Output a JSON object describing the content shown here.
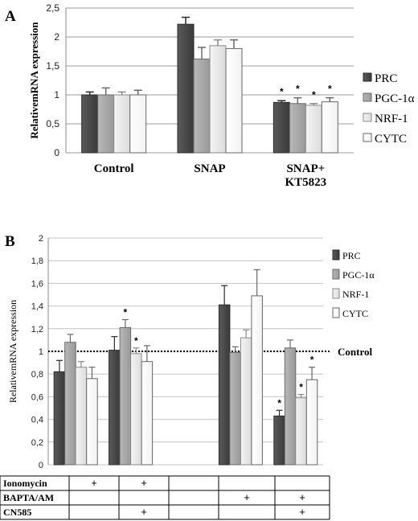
{
  "panel_a_label": "A",
  "panel_b_label": "B",
  "colors": {
    "PRC": "#4a4a4a",
    "PGC": "#a8a8a8",
    "NRF": "#e8e8e8",
    "CYTC": "#ffffff"
  },
  "chart_data": [
    {
      "type": "bar",
      "ylabel": "RelativemRNA expression",
      "ylim": [
        0,
        2.5
      ],
      "yticks": [
        "0",
        "0,5",
        "1",
        "1,5",
        "2",
        "2,5"
      ],
      "categories": [
        "Control",
        "SNAP",
        "SNAP+\nKT5823"
      ],
      "category_lines": [
        [
          "Control"
        ],
        [
          "SNAP"
        ],
        [
          "SNAP+",
          "KT5823"
        ]
      ],
      "legend": [
        "PRC",
        "PGC-1α",
        "NRF-1",
        "CYTC"
      ],
      "series": [
        {
          "name": "PRC",
          "values": [
            1.0,
            2.22,
            0.87
          ],
          "errors": [
            0.05,
            0.12,
            0.03
          ],
          "sig": [
            false,
            false,
            true
          ]
        },
        {
          "name": "PGC-1α",
          "values": [
            1.0,
            1.62,
            0.85
          ],
          "errors": [
            0.12,
            0.2,
            0.1
          ],
          "sig": [
            false,
            false,
            true
          ]
        },
        {
          "name": "NRF-1",
          "values": [
            1.0,
            1.85,
            0.82
          ],
          "errors": [
            0.05,
            0.1,
            0.03
          ],
          "sig": [
            false,
            false,
            true
          ]
        },
        {
          "name": "CYTC",
          "values": [
            1.0,
            1.8,
            0.88
          ],
          "errors": [
            0.08,
            0.15,
            0.07
          ],
          "sig": [
            false,
            false,
            true
          ]
        }
      ],
      "grid": true
    },
    {
      "type": "bar",
      "ylabel": "RelativemRNA expression",
      "ylim": [
        0,
        2
      ],
      "yticks": [
        "0",
        "0,2",
        "0,4",
        "0,6",
        "0,8",
        "1",
        "1,2",
        "1,4",
        "1,6",
        "1,8",
        "2"
      ],
      "reference_line": {
        "value": 1.0,
        "label": "Control"
      },
      "legend": [
        "PRC",
        "PGC-1α",
        "NRF-1",
        "CYTC"
      ],
      "groups": [
        {
          "PRC": 0.82,
          "PGC": 1.08,
          "NRF": 0.86,
          "CYTC": 0.76,
          "err": [
            0.1,
            0.07,
            0.05,
            0.1
          ],
          "sig": [
            false,
            false,
            false,
            false
          ]
        },
        {
          "PRC": 1.01,
          "PGC": 1.21,
          "NRF": 0.98,
          "CYTC": 0.91,
          "err": [
            0.12,
            0.07,
            0.05,
            0.14
          ],
          "sig": [
            false,
            true,
            true,
            false
          ]
        },
        null,
        {
          "PRC": 1.41,
          "PGC": 0.99,
          "NRF": 1.12,
          "CYTC": 1.49,
          "err": [
            0.17,
            0.05,
            0.07,
            0.23
          ],
          "sig": [
            false,
            false,
            false,
            false
          ]
        },
        {
          "PRC": 0.43,
          "PGC": 1.03,
          "NRF": 0.59,
          "CYTC": 0.75,
          "err": [
            0.05,
            0.07,
            0.03,
            0.11
          ],
          "sig": [
            true,
            false,
            true,
            true
          ]
        }
      ],
      "grid": true
    }
  ],
  "table": {
    "rows": [
      {
        "label": "Ionomycin",
        "marks": [
          "+",
          "+",
          "",
          "",
          ""
        ]
      },
      {
        "label": "BAPTA/AM",
        "marks": [
          "",
          "",
          "",
          "+",
          "+"
        ]
      },
      {
        "label": "CN585",
        "marks": [
          "",
          "+",
          "",
          "",
          "+"
        ]
      }
    ]
  }
}
